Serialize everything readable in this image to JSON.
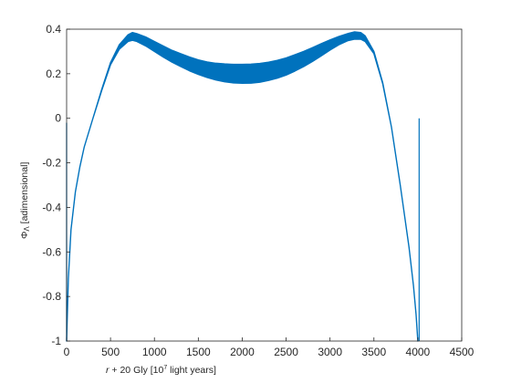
{
  "chart_data": {
    "type": "line",
    "title": "",
    "xlabel_prefix": "r",
    "xlabel_mid": " + 20 Gly [10",
    "xlabel_sup": "7",
    "xlabel_suffix": " light years]",
    "ylabel_main": "Φ",
    "ylabel_sub": "Λ",
    "ylabel_suffix": " [adimensional]",
    "xlim": [
      0,
      4500
    ],
    "ylim": [
      -1,
      0.4
    ],
    "xticks": [
      0,
      500,
      1000,
      1500,
      2000,
      2500,
      3000,
      3500,
      4000,
      4500
    ],
    "xtick_labels": [
      "0",
      "500",
      "1000",
      "1500",
      "2000",
      "2500",
      "3000",
      "3500",
      "4000",
      "4500"
    ],
    "yticks": [
      -1,
      -0.8,
      -0.6,
      -0.4,
      -0.2,
      0,
      0.2,
      0.4
    ],
    "ytick_labels": [
      "-1",
      "-0.8",
      "-0.6",
      "-0.4",
      "-0.2",
      "0",
      "0.2",
      "0.4"
    ],
    "grid": false,
    "line_color": "#0072BD",
    "series": [
      {
        "band_upper": {
          "x": [
            0,
            20,
            50,
            100,
            150,
            200,
            300,
            400,
            500,
            600,
            700,
            750,
            800,
            900,
            1000,
            1100,
            1200,
            1300,
            1400,
            1500,
            1600,
            1700,
            1800,
            1900,
            2000,
            2100,
            2200,
            2300,
            2400,
            2500,
            2600,
            2700,
            2800,
            2900,
            3000,
            3100,
            3200,
            3280,
            3350,
            3400,
            3500,
            3600,
            3700,
            3800,
            3850,
            3900,
            3950,
            3980,
            4000
          ],
          "y": [
            -1,
            -0.72,
            -0.5,
            -0.33,
            -0.22,
            -0.13,
            0.0,
            0.13,
            0.25,
            0.33,
            0.375,
            0.385,
            0.38,
            0.365,
            0.345,
            0.325,
            0.305,
            0.29,
            0.275,
            0.262,
            0.253,
            0.247,
            0.244,
            0.242,
            0.242,
            0.243,
            0.246,
            0.252,
            0.26,
            0.271,
            0.285,
            0.3,
            0.317,
            0.335,
            0.352,
            0.367,
            0.38,
            0.388,
            0.385,
            0.37,
            0.3,
            0.16,
            -0.04,
            -0.3,
            -0.44,
            -0.58,
            -0.75,
            -0.88,
            -1
          ]
        },
        "band_lower": {
          "x": [
            0,
            20,
            50,
            100,
            150,
            200,
            300,
            400,
            500,
            600,
            700,
            750,
            800,
            900,
            1000,
            1100,
            1200,
            1300,
            1400,
            1500,
            1600,
            1700,
            1800,
            1900,
            2000,
            2100,
            2200,
            2300,
            2400,
            2500,
            2600,
            2700,
            2800,
            2900,
            3000,
            3100,
            3200,
            3280,
            3350,
            3400,
            3500,
            3600,
            3700,
            3800,
            3850,
            3900,
            3950,
            3980,
            4000
          ],
          "y": [
            -1,
            -0.72,
            -0.5,
            -0.33,
            -0.22,
            -0.13,
            0.0,
            0.125,
            0.24,
            0.31,
            0.345,
            0.35,
            0.345,
            0.325,
            0.3,
            0.275,
            0.252,
            0.232,
            0.213,
            0.197,
            0.183,
            0.172,
            0.164,
            0.159,
            0.157,
            0.158,
            0.162,
            0.17,
            0.18,
            0.194,
            0.212,
            0.232,
            0.255,
            0.28,
            0.306,
            0.33,
            0.348,
            0.355,
            0.355,
            0.345,
            0.29,
            0.155,
            -0.04,
            -0.3,
            -0.44,
            -0.58,
            -0.75,
            -0.88,
            -1
          ]
        }
      }
    ],
    "extra_lines": [
      {
        "x": [
          0,
          0
        ],
        "y": [
          -1,
          -0.02
        ]
      },
      {
        "x": [
          4015,
          4015
        ],
        "y": [
          -1,
          0.0
        ]
      }
    ]
  }
}
